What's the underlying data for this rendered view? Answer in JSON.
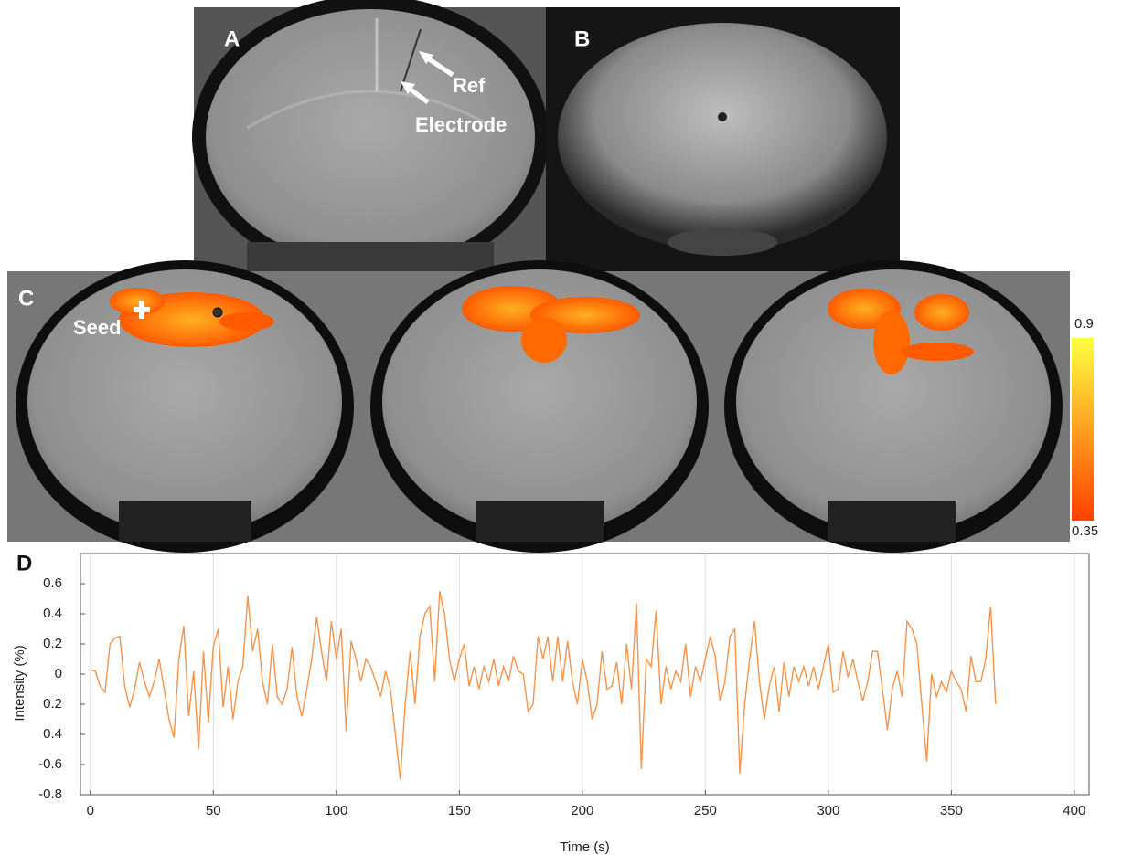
{
  "labels": {
    "a": "A",
    "b": "B",
    "c": "C",
    "d": "D",
    "ref": "Ref",
    "electrode": "Electrode",
    "seed": "Seed"
  },
  "colorbar": {
    "max": 0.9,
    "min": 0.35
  },
  "chart_data": {
    "type": "line",
    "xlabel": "Time (s)",
    "ylabel": "Intensity (%)",
    "color": "#f4934a",
    "xgrid": true,
    "xlim": [
      -4,
      406
    ],
    "ylim": [
      -0.8,
      0.8
    ],
    "xticks": [
      0,
      50,
      100,
      150,
      200,
      250,
      300,
      350,
      400
    ],
    "yticks": [
      0.6,
      0.4,
      0.2,
      0,
      {
        "value": -0.2,
        "label": "0.2"
      },
      {
        "value": -0.4,
        "label": "0.4"
      },
      -0.6,
      -0.8
    ],
    "x": [
      0,
      2,
      4,
      6,
      8,
      10,
      12,
      14,
      16,
      18,
      20,
      22,
      24,
      26,
      28,
      30,
      32,
      34,
      36,
      38,
      40,
      42,
      44,
      46,
      48,
      50,
      52,
      54,
      56,
      58,
      60,
      62,
      64,
      66,
      68,
      70,
      72,
      74,
      76,
      78,
      80,
      82,
      84,
      86,
      88,
      90,
      92,
      94,
      96,
      98,
      100,
      102,
      104,
      106,
      108,
      110,
      112,
      114,
      116,
      118,
      120,
      122,
      124,
      126,
      128,
      130,
      132,
      134,
      136,
      138,
      140,
      142,
      144,
      146,
      148,
      150,
      152,
      154,
      156,
      158,
      160,
      162,
      164,
      166,
      168,
      170,
      172,
      174,
      176,
      178,
      180,
      182,
      184,
      186,
      188,
      190,
      192,
      194,
      196,
      198,
      200,
      202,
      204,
      206,
      208,
      210,
      212,
      214,
      216,
      218,
      220,
      222,
      224,
      226,
      228,
      230,
      232,
      234,
      236,
      238,
      240,
      242,
      244,
      246,
      248,
      250,
      252,
      254,
      256,
      258,
      260,
      262,
      264,
      266,
      268,
      270,
      272,
      274,
      276,
      278,
      280,
      282,
      284,
      286,
      288,
      290,
      292,
      294,
      296,
      298,
      300,
      302,
      304,
      306,
      308,
      310,
      312,
      314,
      316,
      318,
      320,
      322,
      324,
      326,
      328,
      330,
      332,
      334,
      336,
      338,
      340,
      342,
      344,
      346,
      348,
      350,
      352,
      354,
      356,
      358,
      360,
      362,
      364,
      366,
      368
    ],
    "values": [
      0.03,
      0.02,
      -0.08,
      -0.12,
      0.2,
      0.24,
      0.25,
      -0.08,
      -0.22,
      -0.1,
      0.08,
      -0.05,
      -0.15,
      -0.05,
      0.1,
      -0.1,
      -0.3,
      -0.42,
      0.1,
      0.32,
      -0.28,
      0.02,
      -0.5,
      0.15,
      -0.32,
      0.18,
      0.3,
      -0.22,
      0.05,
      -0.3,
      -0.05,
      0.05,
      0.52,
      0.15,
      0.3,
      -0.05,
      -0.2,
      0.2,
      -0.15,
      -0.2,
      -0.1,
      0.18,
      -0.15,
      -0.28,
      -0.1,
      0.1,
      0.38,
      0.15,
      -0.05,
      0.35,
      0.1,
      0.3,
      -0.38,
      0.22,
      0.1,
      -0.05,
      0.1,
      0.05,
      -0.05,
      -0.15,
      0.02,
      -0.1,
      -0.4,
      -0.7,
      -0.2,
      0.15,
      -0.2,
      0.25,
      0.4,
      0.45,
      -0.05,
      0.55,
      0.4,
      0.1,
      -0.05,
      0.1,
      0.2,
      -0.08,
      0.05,
      -0.1,
      0.05,
      -0.05,
      0.1,
      -0.08,
      0.05,
      -0.05,
      0.12,
      0.02,
      0,
      -0.25,
      -0.2,
      0.25,
      0.1,
      0.25,
      -0.05,
      0.25,
      -0.05,
      0.22,
      -0.05,
      -0.2,
      0.1,
      -0.05,
      -0.3,
      -0.2,
      0.15,
      -0.1,
      -0.08,
      0.08,
      -0.2,
      0.2,
      -0.1,
      0.47,
      -0.63,
      0.1,
      0.05,
      0.42,
      -0.2,
      0.05,
      -0.1,
      0.02,
      -0.05,
      0.2,
      -0.15,
      0.05,
      -0.05,
      0.1,
      0.25,
      0.12,
      -0.18,
      -0.05,
      0.25,
      0.3,
      -0.66,
      -0.2,
      0.1,
      0.35,
      -0.05,
      -0.3,
      -0.08,
      0.05,
      -0.25,
      0.08,
      -0.15,
      0.05,
      -0.05,
      0.05,
      -0.08,
      0.05,
      -0.1,
      0.05,
      0.2,
      -0.12,
      -0.1,
      0.15,
      -0.02,
      0.1,
      -0.05,
      -0.18,
      -0.05,
      0.15,
      0.15,
      -0.1,
      -0.37,
      -0.1,
      0.02,
      -0.15,
      0.35,
      0.3,
      0.2,
      -0.2,
      -0.58,
      0,
      -0.15,
      -0.05,
      -0.12,
      0.02,
      -0.05,
      -0.1,
      -0.25,
      0.12,
      -0.05,
      -0.05,
      0.1,
      0.45,
      -0.2
    ]
  }
}
